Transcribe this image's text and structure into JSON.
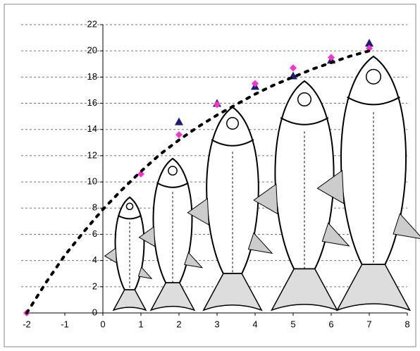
{
  "chart_data": {
    "type": "scatter",
    "xlim": [
      -2,
      8
    ],
    "xticks": [
      -2,
      -1,
      0,
      1,
      2,
      3,
      4,
      5,
      6,
      7,
      8
    ],
    "ylim": [
      0,
      22
    ],
    "yticks": [
      0,
      2,
      4,
      6,
      8,
      10,
      12,
      14,
      16,
      18,
      20,
      22
    ],
    "grid": true,
    "series": [
      {
        "marker": "triangle",
        "color": "#1c1c7a",
        "x": [
          2,
          3,
          4,
          5,
          6,
          7
        ],
        "values": [
          14.6,
          16.0,
          17.3,
          18.1,
          19.3,
          20.6
        ]
      },
      {
        "marker": "diamond",
        "color": "#ff33cc",
        "x": [
          -2,
          1,
          2,
          3,
          4,
          5,
          6,
          7
        ],
        "values": [
          0,
          10.6,
          13.6,
          15.9,
          17.5,
          18.7,
          19.5,
          20.2
        ]
      },
      {
        "marker": "dotted-line",
        "color": "#000000",
        "x": [
          -2,
          -1.5,
          -1,
          -0.5,
          0,
          0.5,
          1,
          1.5,
          2,
          2.5,
          3,
          3.5,
          4,
          4.5,
          5,
          5.5,
          6,
          6.5,
          7
        ],
        "values": [
          0,
          2.3,
          4.4,
          6.2,
          7.9,
          9.4,
          10.8,
          12.1,
          13.2,
          14.2,
          15.1,
          15.9,
          16.7,
          17.4,
          18.0,
          18.6,
          19.1,
          19.6,
          20.0
        ]
      }
    ]
  }
}
